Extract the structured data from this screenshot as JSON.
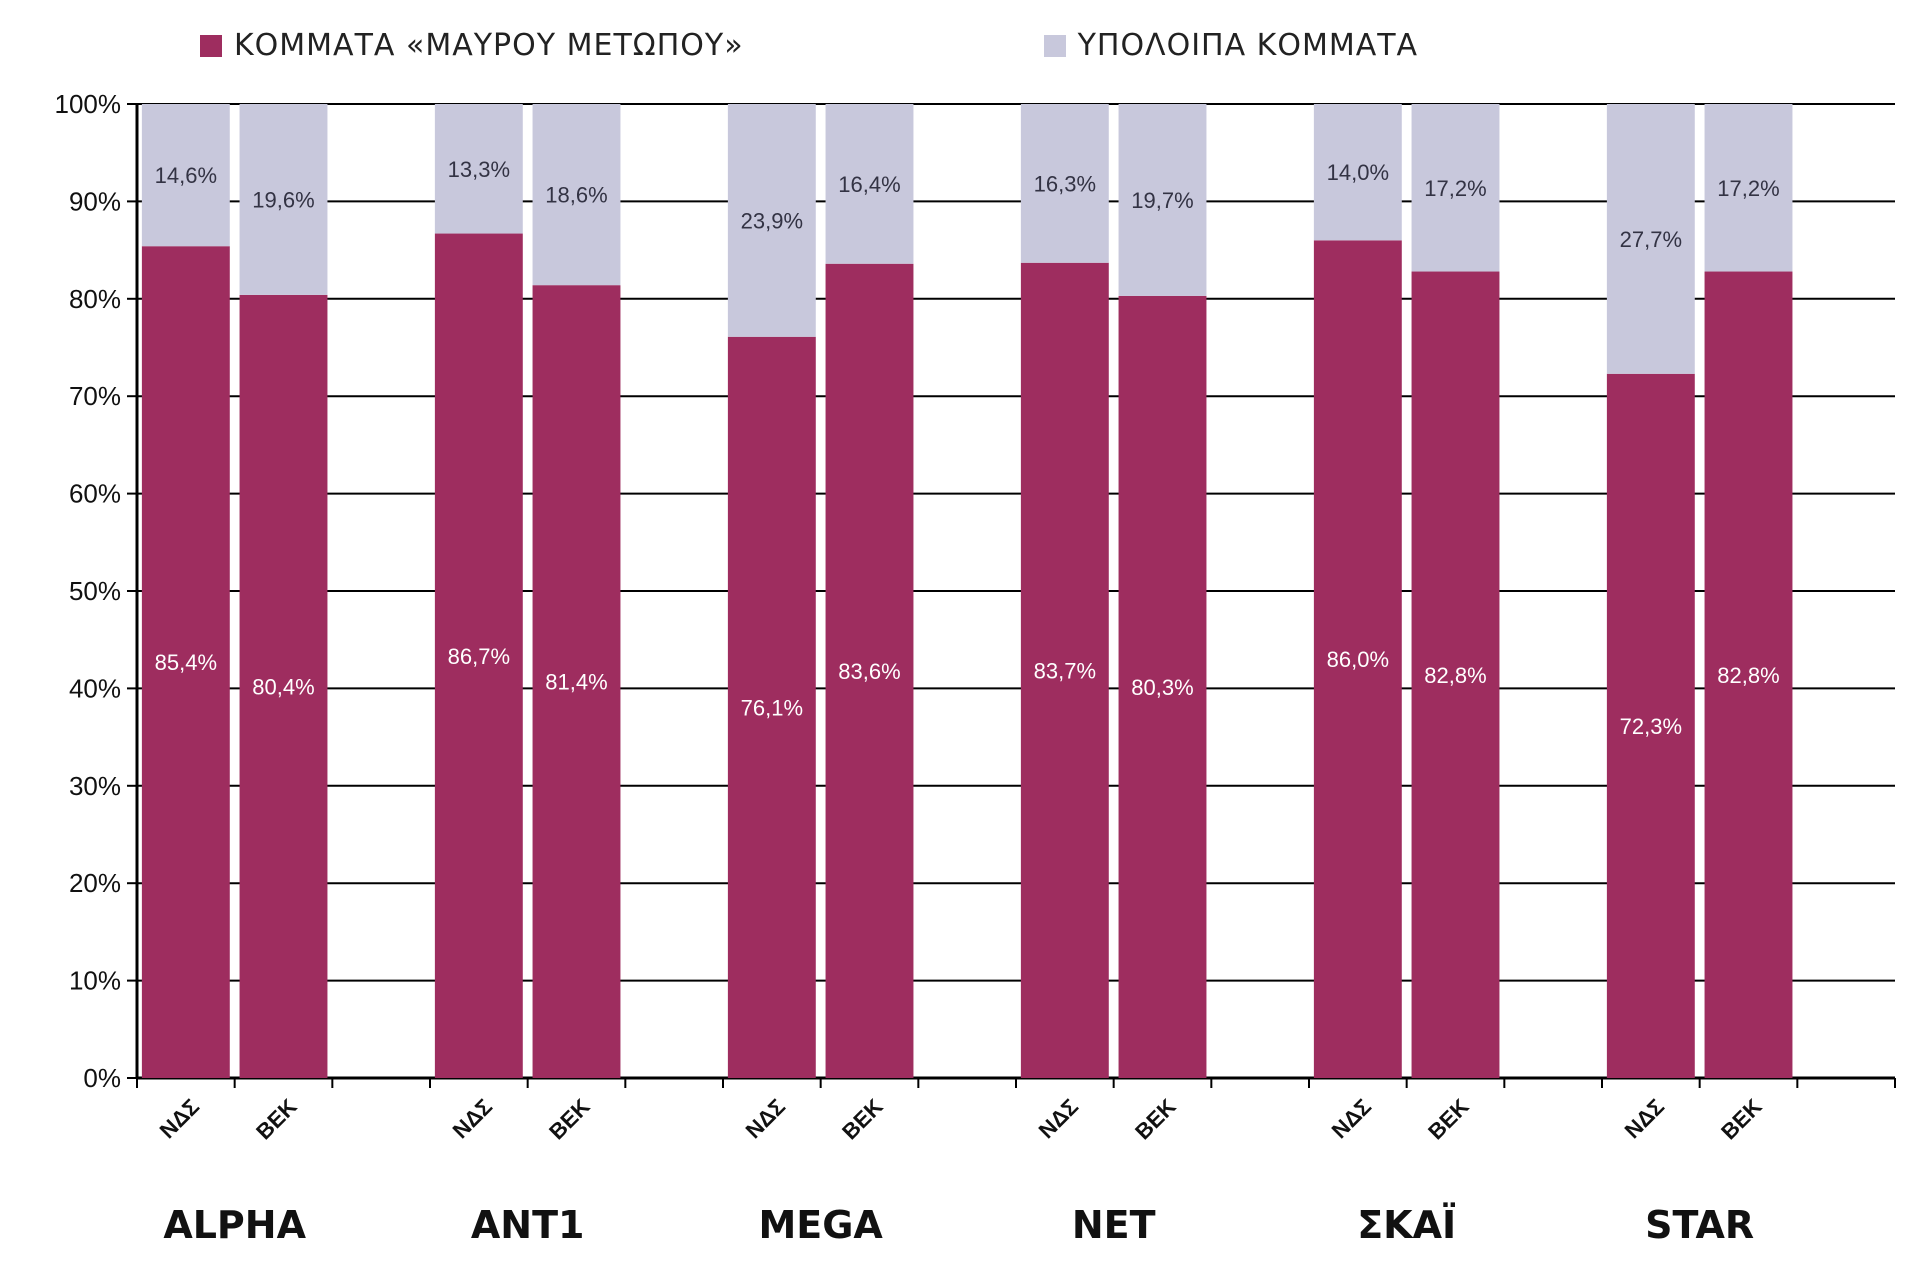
{
  "chart_data": {
    "type": "bar",
    "stacked": true,
    "percent_axis": true,
    "ylim": [
      0,
      100
    ],
    "yticks": [
      "0%",
      "10%",
      "20%",
      "30%",
      "40%",
      "50%",
      "60%",
      "70%",
      "80%",
      "90%",
      "100%"
    ],
    "grid": true,
    "legend_position": "top",
    "groups": [
      "ALPHA",
      "ANT1",
      "MEGA",
      "NET",
      "ΣΚΑΪ",
      "STAR"
    ],
    "bar_labels": [
      "ΝΔΣ",
      "ΒΕΚ"
    ],
    "series": [
      {
        "name": "ΚΟΜΜΑΤΑ «ΜΑΥΡΟΥ ΜΕΤΩΠΟΥ»",
        "color": "#9e2d5f",
        "values": [
          85.4,
          80.4,
          86.7,
          81.4,
          76.1,
          83.6,
          83.7,
          80.3,
          86.0,
          82.8,
          72.3,
          82.8
        ],
        "labels": [
          "85,4%",
          "80,4%",
          "86,7%",
          "81,4%",
          "76,1%",
          "83,6%",
          "83,7%",
          "80,3%",
          "86,0%",
          "82,8%",
          "72,3%",
          "82,8%"
        ]
      },
      {
        "name": "ΥΠΟΛΟΙΠΑ ΚΟΜΜΑΤΑ",
        "color": "#c8c8dc",
        "values": [
          14.6,
          19.6,
          13.3,
          18.6,
          23.9,
          16.4,
          16.3,
          19.7,
          14.0,
          17.2,
          27.7,
          17.2
        ],
        "labels": [
          "14,6%",
          "19,6%",
          "13,3%",
          "18,6%",
          "23,9%",
          "16,4%",
          "16,3%",
          "19,7%",
          "14,0%",
          "17,2%",
          "27,7%",
          "17,2%"
        ]
      }
    ]
  }
}
